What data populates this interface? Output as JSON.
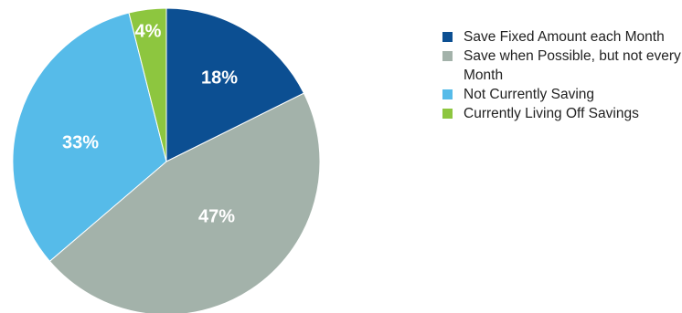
{
  "chart_data": {
    "type": "pie",
    "categories": [
      "Save Fixed Amount each Month",
      "Save when Possible, but not every Month",
      "Not Currently Saving",
      "Currently Living Off Savings"
    ],
    "values": [
      18,
      47,
      33,
      4
    ],
    "labels": [
      "18%",
      "47%",
      "33%",
      "4%"
    ],
    "colors": [
      "#0c4f92",
      "#a3b2aa",
      "#56bbe9",
      "#8dc63f"
    ],
    "start_angle": "12 o'clock",
    "direction": "clockwise",
    "legend_position": "right"
  },
  "legend": {
    "items": [
      {
        "label": "Save Fixed Amount each Month",
        "color": "#0c4f92"
      },
      {
        "label": "Save when Possible, but not every Month",
        "color": "#a3b2aa"
      },
      {
        "label": "Not Currently Saving",
        "color": "#56bbe9"
      },
      {
        "label": "Currently Living Off Savings",
        "color": "#8dc63f"
      }
    ]
  }
}
